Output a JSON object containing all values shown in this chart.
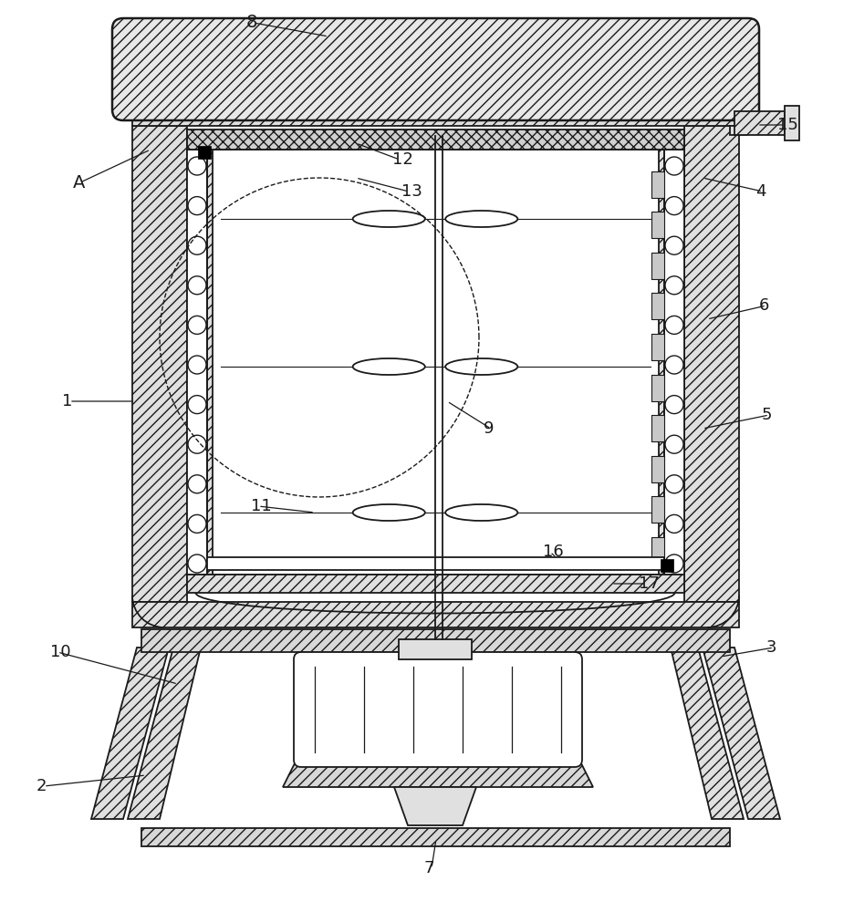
{
  "bg": "#ffffff",
  "lc": "#1a1a1a",
  "figsize": [
    9.36,
    10.0
  ],
  "dpi": 100
}
